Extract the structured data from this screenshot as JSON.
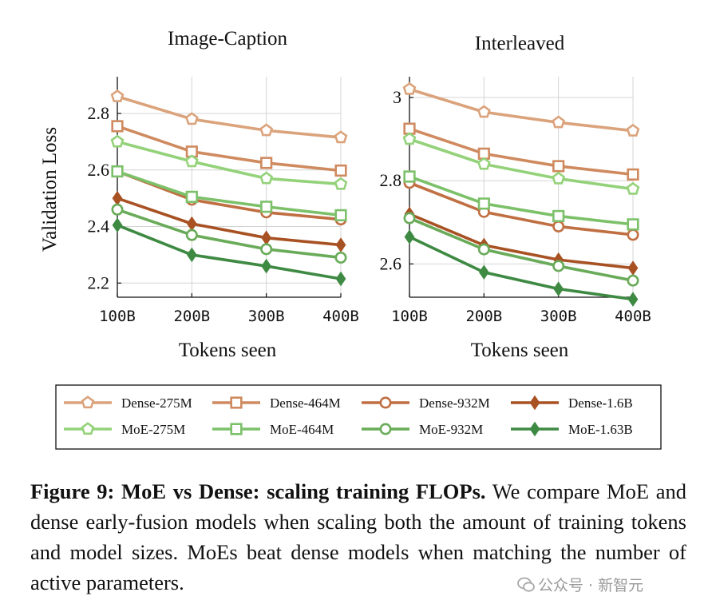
{
  "chart_data": [
    {
      "type": "line",
      "title": "Image-Caption",
      "xlabel": "Tokens seen",
      "ylabel": "Validation Loss",
      "categories": [
        "100B",
        "200B",
        "300B",
        "400B"
      ],
      "ylim": [
        2.15,
        2.93
      ],
      "yticks": [
        2.2,
        2.4,
        2.6,
        2.8
      ],
      "ytick_labels": [
        "2.2",
        "2.4",
        "2.6",
        "2.8"
      ],
      "grid": true,
      "series": [
        {
          "name": "Dense-275M",
          "values": [
            2.86,
            2.78,
            2.74,
            2.715
          ]
        },
        {
          "name": "Dense-464M",
          "values": [
            2.755,
            2.665,
            2.625,
            2.598
          ]
        },
        {
          "name": "Dense-932M",
          "values": [
            2.595,
            2.495,
            2.45,
            2.425
          ]
        },
        {
          "name": "Dense-1.6B",
          "values": [
            2.5,
            2.41,
            2.36,
            2.335
          ]
        },
        {
          "name": "MoE-275M",
          "values": [
            2.7,
            2.63,
            2.57,
            2.55
          ]
        },
        {
          "name": "MoE-464M",
          "values": [
            2.595,
            2.505,
            2.47,
            2.44
          ]
        },
        {
          "name": "MoE-932M",
          "values": [
            2.46,
            2.37,
            2.32,
            2.29
          ]
        },
        {
          "name": "MoE-1.63B",
          "values": [
            2.405,
            2.3,
            2.26,
            2.215
          ]
        }
      ]
    },
    {
      "type": "line",
      "title": "Interleaved",
      "xlabel": "Tokens seen",
      "ylabel": "",
      "categories": [
        "100B",
        "200B",
        "300B",
        "400B"
      ],
      "ylim": [
        2.52,
        3.05
      ],
      "yticks": [
        2.6,
        2.8,
        3.0
      ],
      "ytick_labels": [
        "2.6",
        "2.8",
        "3"
      ],
      "grid": true,
      "series": [
        {
          "name": "Dense-275M",
          "values": [
            3.02,
            2.965,
            2.94,
            2.92
          ]
        },
        {
          "name": "Dense-464M",
          "values": [
            2.925,
            2.865,
            2.835,
            2.815
          ]
        },
        {
          "name": "Dense-932M",
          "values": [
            2.795,
            2.725,
            2.69,
            2.67
          ]
        },
        {
          "name": "Dense-1.6B",
          "values": [
            2.72,
            2.645,
            2.61,
            2.59
          ]
        },
        {
          "name": "MoE-275M",
          "values": [
            2.9,
            2.84,
            2.805,
            2.78
          ]
        },
        {
          "name": "MoE-464M",
          "values": [
            2.81,
            2.745,
            2.715,
            2.695
          ]
        },
        {
          "name": "MoE-932M",
          "values": [
            2.71,
            2.635,
            2.595,
            2.56
          ]
        },
        {
          "name": "MoE-1.63B",
          "values": [
            2.665,
            2.58,
            2.54,
            2.515
          ]
        }
      ]
    }
  ],
  "series_styles": {
    "Dense-275M": {
      "color": "#dba37c",
      "marker": "pentagon"
    },
    "Dense-464M": {
      "color": "#cf8a5f",
      "marker": "square"
    },
    "Dense-932M": {
      "color": "#c06f42",
      "marker": "circle"
    },
    "Dense-1.6B": {
      "color": "#a85224",
      "marker": "diamond"
    },
    "MoE-275M": {
      "color": "#94d27a",
      "marker": "pentagon"
    },
    "MoE-464M": {
      "color": "#7cc16a",
      "marker": "square"
    },
    "MoE-932M": {
      "color": "#69ab59",
      "marker": "circle"
    },
    "MoE-1.63B": {
      "color": "#3e8a43",
      "marker": "diamond"
    }
  },
  "legend": {
    "entries": [
      "Dense-275M",
      "Dense-464M",
      "Dense-932M",
      "Dense-1.6B",
      "MoE-275M",
      "MoE-464M",
      "MoE-932M",
      "MoE-1.63B"
    ]
  },
  "caption": {
    "bold": "Figure 9: MoE vs Dense: scaling training FLOPs.",
    "text": " We compare MoE and dense early-fusion models when scaling both the amount of training tokens and model sizes. MoEs beat dense models when matching the number of active parameters."
  },
  "watermark": {
    "text": "公众号 · 新智元",
    "icon": "wechat-icon"
  }
}
